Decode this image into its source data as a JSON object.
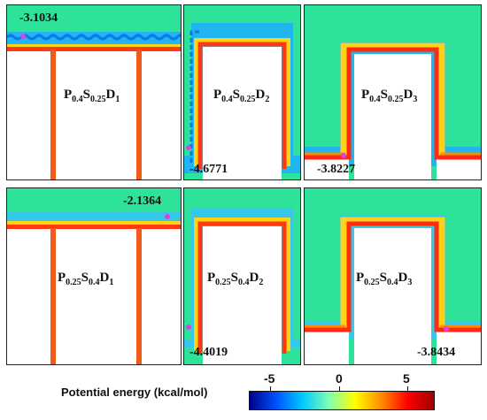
{
  "panels": [
    {
      "id": "p1",
      "label": {
        "p": "P",
        "ps": "0.4",
        "s": "S",
        "ss": "0.25",
        "d": "D",
        "ds": "1"
      },
      "min_value": "-3.1034"
    },
    {
      "id": "p2",
      "label": {
        "p": "P",
        "ps": "0.4",
        "s": "S",
        "ss": "0.25",
        "d": "D",
        "ds": "2"
      },
      "min_value": "-4.6771"
    },
    {
      "id": "p3",
      "label": {
        "p": "P",
        "ps": "0.4",
        "s": "S",
        "ss": "0.25",
        "d": "D",
        "ds": "3"
      },
      "min_value": "-3.8227"
    },
    {
      "id": "p4",
      "label": {
        "p": "P",
        "ps": "0.25",
        "s": "S",
        "ss": "0.4",
        "d": "D",
        "ds": "1"
      },
      "min_value": "-2.1364"
    },
    {
      "id": "p5",
      "label": {
        "p": "P",
        "ps": "0.25",
        "s": "S",
        "ss": "0.4",
        "d": "D",
        "ds": "2"
      },
      "min_value": "-4.4019"
    },
    {
      "id": "p6",
      "label": {
        "p": "P",
        "ps": "0.25",
        "s": "S",
        "ss": "0.4",
        "d": "D",
        "ds": "3"
      },
      "min_value": "-3.8434"
    }
  ],
  "colorbar": {
    "caption": "Potential energy (kcal/mol)",
    "ticks": [
      "-5",
      "0",
      "5"
    ],
    "colors": [
      "#00008b",
      "#0050ff",
      "#00c8ff",
      "#7dffb4",
      "#ffff00",
      "#ff8c00",
      "#ff0000",
      "#a00000"
    ]
  }
}
